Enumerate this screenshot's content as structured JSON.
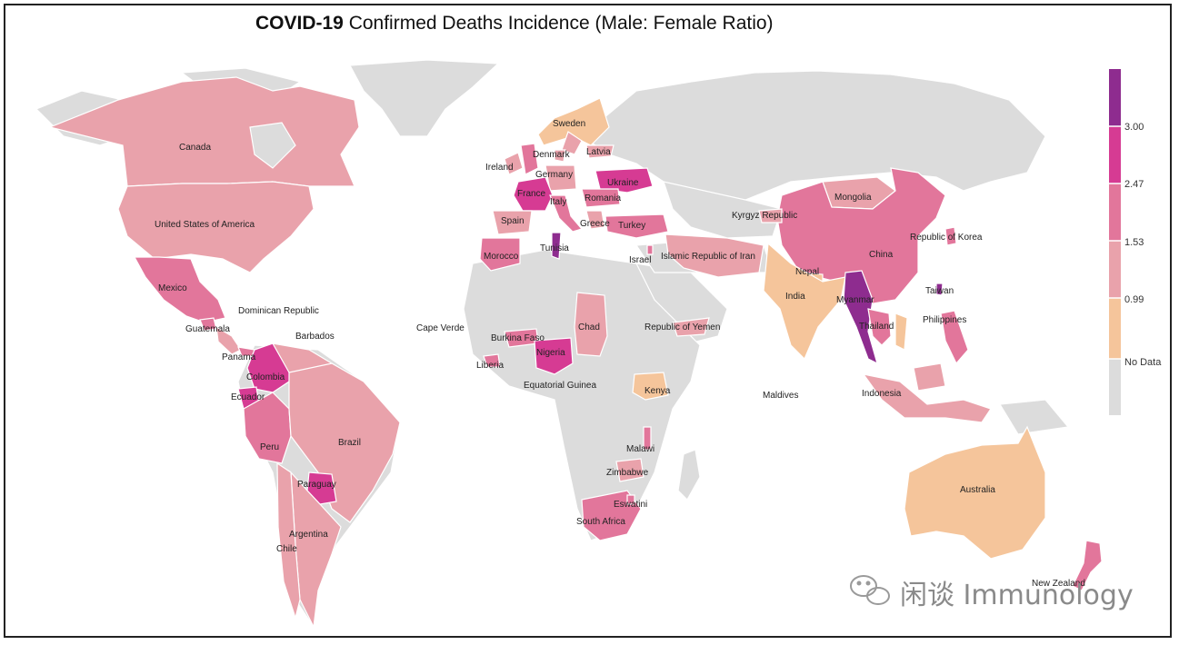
{
  "title": {
    "bold": "COVID-19",
    "rest": " Confirmed Deaths Incidence (Male: Female Ratio)"
  },
  "legend": {
    "ticks": [
      "3.00",
      "2.47",
      "1.53",
      "0.99",
      "No Data"
    ],
    "colors": {
      "c5": "#8e2c8f",
      "c4": "#d63b93",
      "c3": "#e2769b",
      "c2": "#e9a2ab",
      "c1": "#f5c59b",
      "nodata": "#dcdcdc"
    }
  },
  "labels": {
    "canada": "Canada",
    "usa": "United States of America",
    "mexico": "Mexico",
    "guatemala": "Guatemala",
    "dominican": "Dominican Republic",
    "barbados": "Barbados",
    "panama": "Panama",
    "colombia": "Colombia",
    "ecuador": "Ecuador",
    "peru": "Peru",
    "brazil": "Brazil",
    "paraguay": "Paraguay",
    "argentina": "Argentina",
    "chile": "Chile",
    "sweden": "Sweden",
    "denmark": "Denmark",
    "latvia": "Latvia",
    "ireland": "Ireland",
    "germany": "Germany",
    "ukraine": "Ukraine",
    "france": "France",
    "italy": "Italy",
    "romania": "Romania",
    "spain": "Spain",
    "greece": "Greece",
    "turkey": "Turkey",
    "tunisia": "Tunisia",
    "morocco": "Morocco",
    "israel": "Israel",
    "iran": "Islamic Republic of Iran",
    "capeverde": "Cape Verde",
    "burkina": "Burkina Faso",
    "chad": "Chad",
    "yemen": "Republic of Yemen",
    "nigeria": "Nigeria",
    "liberia": "Liberia",
    "eqguinea": "Equatorial Guinea",
    "kenya": "Kenya",
    "malawi": "Malawi",
    "zimbabwe": "Zimbabwe",
    "eswatini": "Eswatini",
    "southafrica": "South Africa",
    "kyrgyz": "Kyrgyz Republic",
    "mongolia": "Mongolia",
    "china": "China",
    "korea": "Republic of Korea",
    "nepal": "Nepal",
    "india": "India",
    "myanmar": "Myanmar",
    "taiwan": "Taiwan",
    "thailand": "Thailand",
    "philippines": "Philippines",
    "maldives": "Maldives",
    "indonesia": "Indonesia",
    "australia": "Australia",
    "newzealand": "New Zealand"
  },
  "country_values": {
    "Canada": "1.53-2.47 band (light)",
    "United States of America": "0.99-1.53 band",
    "Mexico": "2.47-3.00 band",
    "Myanmar": "above 3.00",
    "Tunisia": "above 3.00",
    "Sweden": "No Data / below 0.99",
    "India": "below 0.99",
    "Australia": "below 0.99",
    "Kenya": "below 0.99"
  },
  "watermark": "闲谈 Immunology"
}
